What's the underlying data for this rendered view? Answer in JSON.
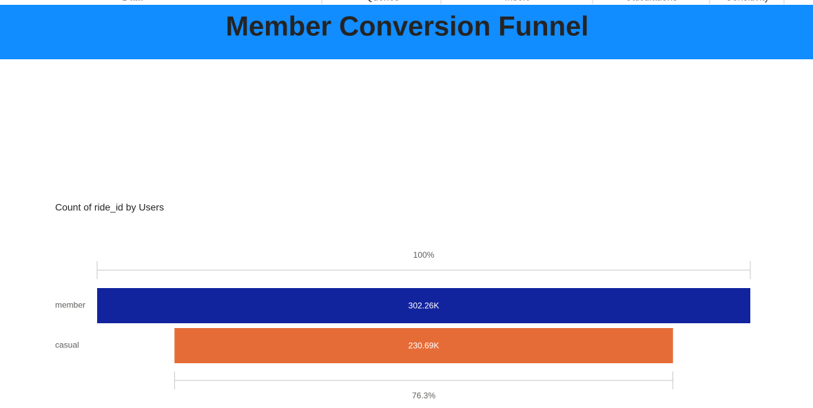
{
  "ribbon": [
    "Data",
    "Queries",
    "Insert",
    "Calculations",
    "Sensitivity"
  ],
  "chart_data": {
    "type": "funnel",
    "title": "Member Conversion Funnel",
    "subtitle": "Count of ride_id by Users",
    "categories": [
      "member",
      "casual"
    ],
    "values": [
      302260,
      230690
    ],
    "value_labels": [
      "302.26K",
      "230.69K"
    ],
    "colors": [
      "#12239e",
      "#e66c37"
    ],
    "conversion": [
      {
        "value": 100,
        "label": "100%"
      },
      {
        "value": 76.3,
        "label": "76.3%"
      }
    ]
  }
}
